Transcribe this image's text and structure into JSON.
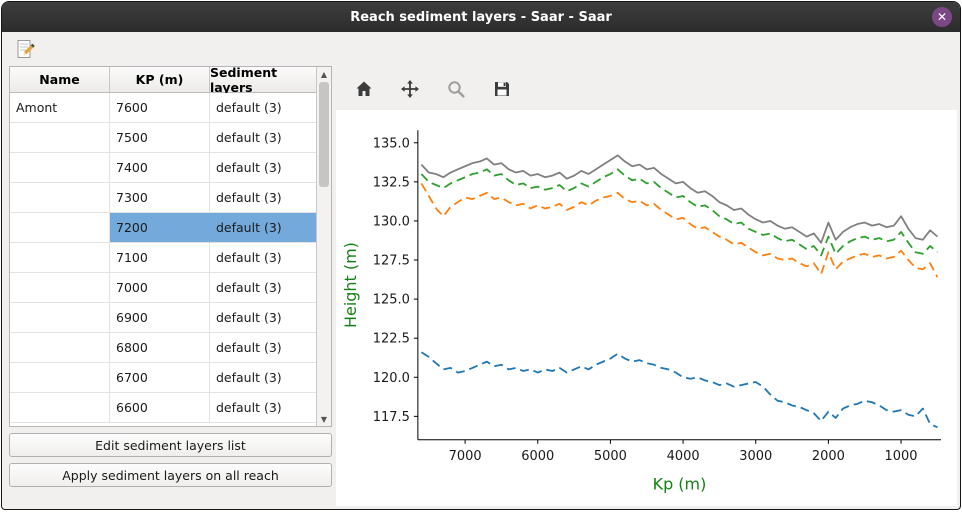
{
  "window": {
    "title": "Reach sediment layers - Saar - Saar",
    "close_glyph": "✕"
  },
  "toolbar": {
    "edit_tooltip": "edit-sediment-layers"
  },
  "table": {
    "columns": [
      "Name",
      "KP (m)",
      "Sediment layers"
    ],
    "selected_index": 4,
    "rows": [
      {
        "name": "Amont",
        "kp": "7600",
        "layers": "default (3)"
      },
      {
        "name": "",
        "kp": "7500",
        "layers": "default (3)"
      },
      {
        "name": "",
        "kp": "7400",
        "layers": "default (3)"
      },
      {
        "name": "",
        "kp": "7300",
        "layers": "default (3)"
      },
      {
        "name": "",
        "kp": "7200",
        "layers": "default (3)"
      },
      {
        "name": "",
        "kp": "7100",
        "layers": "default (3)"
      },
      {
        "name": "",
        "kp": "7000",
        "layers": "default (3)"
      },
      {
        "name": "",
        "kp": "6900",
        "layers": "default (3)"
      },
      {
        "name": "",
        "kp": "6800",
        "layers": "default (3)"
      },
      {
        "name": "",
        "kp": "6700",
        "layers": "default (3)"
      },
      {
        "name": "",
        "kp": "6600",
        "layers": "default (3)"
      }
    ]
  },
  "buttons": {
    "edit": "Edit sediment layers list",
    "apply": "Apply sediment layers on all reach"
  },
  "plot_toolbar": {
    "icons": [
      "home",
      "pan",
      "zoom",
      "save"
    ]
  },
  "chart_data": {
    "type": "line",
    "title": "",
    "xlabel": "Kp (m)",
    "ylabel": "Height (m)",
    "axis_label_color": "#128012",
    "x_reversed": true,
    "xlim": [
      7650,
      450
    ],
    "ylim": [
      116.0,
      135.8
    ],
    "xticks": [
      7000,
      6000,
      5000,
      4000,
      3000,
      2000,
      1000
    ],
    "yticks": [
      117.5,
      120.0,
      122.5,
      125.0,
      127.5,
      130.0,
      132.5,
      135.0
    ],
    "grid": false,
    "legend": "none",
    "x": [
      7600,
      7500,
      7400,
      7300,
      7200,
      7100,
      7000,
      6900,
      6800,
      6700,
      6600,
      6500,
      6400,
      6300,
      6200,
      6100,
      6000,
      5900,
      5800,
      5700,
      5600,
      5500,
      5400,
      5300,
      5200,
      5100,
      5000,
      4900,
      4800,
      4700,
      4600,
      4500,
      4400,
      4300,
      4200,
      4100,
      4000,
      3900,
      3800,
      3700,
      3600,
      3500,
      3400,
      3300,
      3200,
      3100,
      3000,
      2900,
      2800,
      2700,
      2600,
      2500,
      2400,
      2300,
      2200,
      2100,
      2000,
      1900,
      1800,
      1700,
      1600,
      1500,
      1400,
      1300,
      1200,
      1100,
      1000,
      900,
      800,
      700,
      600,
      500
    ],
    "series": [
      {
        "name": "bed-level",
        "color": "#808080",
        "style": "solid",
        "values": [
          133.6,
          133.1,
          133.0,
          132.8,
          133.1,
          133.3,
          133.5,
          133.7,
          133.8,
          134.0,
          133.6,
          133.7,
          133.3,
          133.1,
          133.2,
          132.9,
          133.0,
          132.8,
          132.9,
          133.1,
          132.7,
          132.9,
          133.2,
          133.0,
          133.3,
          133.6,
          133.9,
          134.2,
          133.8,
          133.5,
          133.6,
          133.3,
          133.4,
          133.0,
          132.7,
          132.4,
          132.5,
          132.1,
          131.8,
          131.9,
          131.6,
          131.2,
          131.0,
          130.7,
          130.8,
          130.4,
          130.1,
          129.9,
          130.0,
          129.7,
          129.5,
          129.6,
          129.3,
          129.0,
          129.2,
          128.6,
          129.9,
          128.8,
          129.3,
          129.6,
          129.8,
          129.9,
          129.7,
          129.8,
          129.6,
          129.7,
          130.3,
          129.5,
          128.9,
          128.8,
          129.4,
          129.0
        ]
      },
      {
        "name": "layer-1-bottom",
        "color": "#2ca02c",
        "style": "dashed",
        "values": [
          133.0,
          132.5,
          132.3,
          132.1,
          132.4,
          132.6,
          132.8,
          133.0,
          133.1,
          133.3,
          132.9,
          133.0,
          132.6,
          132.3,
          132.4,
          132.1,
          132.2,
          132.0,
          132.1,
          132.3,
          131.9,
          132.1,
          132.4,
          132.2,
          132.5,
          132.8,
          133.0,
          133.3,
          132.9,
          132.6,
          132.7,
          132.4,
          132.5,
          132.1,
          131.8,
          131.5,
          131.6,
          131.2,
          130.9,
          131.0,
          130.7,
          130.3,
          130.1,
          129.8,
          129.9,
          129.5,
          129.3,
          129.1,
          129.2,
          128.9,
          128.7,
          128.8,
          128.5,
          128.2,
          128.4,
          127.8,
          129.0,
          127.9,
          128.4,
          128.7,
          128.9,
          129.0,
          128.8,
          128.9,
          128.7,
          128.8,
          129.3,
          128.6,
          128.0,
          127.9,
          128.4,
          128.0
        ]
      },
      {
        "name": "layer-2-bottom",
        "color": "#ff7f0e",
        "style": "dashed",
        "values": [
          132.4,
          131.6,
          130.8,
          130.3,
          130.9,
          131.2,
          131.5,
          131.4,
          131.6,
          131.8,
          131.4,
          131.5,
          131.2,
          131.0,
          131.1,
          130.8,
          131.0,
          130.8,
          130.9,
          131.1,
          130.7,
          130.9,
          131.2,
          131.0,
          131.3,
          131.5,
          131.6,
          131.8,
          131.4,
          131.2,
          131.3,
          131.0,
          131.1,
          130.7,
          130.4,
          130.1,
          130.2,
          129.8,
          129.5,
          129.6,
          129.3,
          129.0,
          128.8,
          128.5,
          128.6,
          128.3,
          128.0,
          127.8,
          127.9,
          127.6,
          127.5,
          127.6,
          127.3,
          127.1,
          127.3,
          126.6,
          128.0,
          126.9,
          127.4,
          127.6,
          127.8,
          127.9,
          127.7,
          127.8,
          127.6,
          127.7,
          128.1,
          127.5,
          127.0,
          126.9,
          127.3,
          126.4
        ]
      },
      {
        "name": "layer-3-bottom",
        "color": "#1f77b4",
        "style": "dashed",
        "values": [
          121.6,
          121.3,
          120.9,
          120.5,
          120.6,
          120.3,
          120.4,
          120.6,
          120.8,
          121.0,
          120.7,
          120.8,
          120.5,
          120.6,
          120.4,
          120.5,
          120.3,
          120.5,
          120.4,
          120.6,
          120.3,
          120.5,
          120.7,
          120.5,
          120.8,
          121.0,
          121.2,
          121.5,
          121.2,
          121.0,
          121.1,
          120.9,
          120.8,
          120.6,
          120.5,
          120.3,
          120.0,
          119.9,
          120.0,
          119.8,
          119.7,
          119.5,
          119.6,
          119.4,
          119.5,
          119.6,
          119.7,
          119.4,
          118.9,
          118.5,
          118.4,
          118.2,
          118.1,
          117.9,
          117.7,
          117.2,
          117.8,
          117.4,
          118.0,
          118.2,
          118.3,
          118.5,
          118.4,
          118.2,
          117.9,
          117.8,
          117.9,
          117.6,
          117.5,
          118.0,
          117.0,
          116.8
        ]
      }
    ]
  }
}
